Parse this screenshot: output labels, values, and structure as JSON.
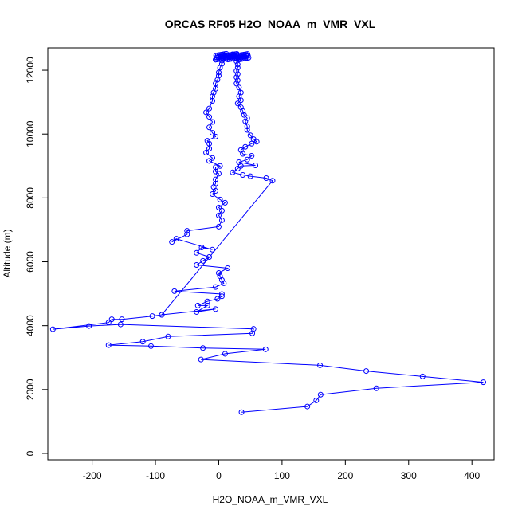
{
  "chart_data": {
    "type": "line",
    "title": "ORCAS RF05 H2O_NOAA_m_VMR_VXL",
    "xlabel": "H2O_NOAA_m_VMR_VXL",
    "ylabel": "Altitude (m)",
    "xlim": [
      -270,
      435
    ],
    "ylim": [
      -200,
      12700
    ],
    "xticks": [
      -200,
      -100,
      0,
      100,
      200,
      300,
      400
    ],
    "yticks": [
      0,
      2000,
      4000,
      6000,
      8000,
      10000,
      12000
    ],
    "grid": false,
    "legend": "none",
    "series": [
      {
        "color": "#0000ff",
        "marker": "open-circle",
        "points": [
          [
            36,
            1290
          ],
          [
            140,
            1470
          ],
          [
            154,
            1660
          ],
          [
            161,
            1840
          ],
          [
            249,
            2040
          ],
          [
            418,
            2230
          ],
          [
            322,
            2410
          ],
          [
            233,
            2580
          ],
          [
            160,
            2760
          ],
          [
            -28,
            2940
          ],
          [
            10,
            3120
          ],
          [
            74,
            3260
          ],
          [
            -25,
            3300
          ],
          [
            -107,
            3360
          ],
          [
            -174,
            3390
          ],
          [
            -120,
            3500
          ],
          [
            -80,
            3660
          ],
          [
            53,
            3760
          ],
          [
            55,
            3900
          ],
          [
            -155,
            4040
          ],
          [
            -205,
            3990
          ],
          [
            -262,
            3890
          ],
          [
            -174,
            4100
          ],
          [
            -169,
            4200
          ],
          [
            -153,
            4200
          ],
          [
            -105,
            4300
          ],
          [
            -90,
            4340
          ],
          [
            -5,
            4520
          ],
          [
            -35,
            4430
          ],
          [
            -18,
            4630
          ],
          [
            -33,
            4630
          ],
          [
            -18,
            4760
          ],
          [
            -2,
            4840
          ],
          [
            5,
            4920
          ],
          [
            5,
            4990
          ],
          [
            -70,
            5080
          ],
          [
            -5,
            5210
          ],
          [
            8,
            5330
          ],
          [
            5,
            5430
          ],
          [
            2,
            5550
          ],
          [
            0,
            5650
          ],
          [
            14,
            5800
          ],
          [
            -35,
            5900
          ],
          [
            -25,
            6030
          ],
          [
            -15,
            6150
          ],
          [
            -35,
            6280
          ],
          [
            -27,
            6450
          ],
          [
            -10,
            6380
          ],
          [
            -67,
            6720
          ],
          [
            -74,
            6620
          ],
          [
            -50,
            6860
          ],
          [
            -50,
            6970
          ],
          [
            0,
            7100
          ],
          [
            5,
            7300
          ],
          [
            0,
            7450
          ],
          [
            5,
            7600
          ],
          [
            0,
            7700
          ],
          [
            10,
            7850
          ],
          [
            2,
            7950
          ],
          [
            -10,
            8120
          ],
          [
            -5,
            8220
          ],
          [
            -8,
            8340
          ],
          [
            -5,
            8450
          ],
          [
            -5,
            8580
          ],
          [
            0,
            8760
          ],
          [
            -5,
            8830
          ],
          [
            -5,
            8960
          ],
          [
            2,
            9000
          ],
          [
            -15,
            9160
          ],
          [
            -10,
            9250
          ],
          [
            -20,
            9420
          ],
          [
            -15,
            9540
          ],
          [
            -15,
            9700
          ],
          [
            -18,
            9790
          ],
          [
            -5,
            9920
          ],
          [
            -10,
            10040
          ],
          [
            -15,
            10210
          ],
          [
            -10,
            10380
          ],
          [
            -15,
            10540
          ],
          [
            -20,
            10680
          ],
          [
            -15,
            10800
          ],
          [
            -10,
            11040
          ],
          [
            -10,
            11180
          ],
          [
            -8,
            11300
          ],
          [
            -5,
            11420
          ],
          [
            -5,
            11580
          ],
          [
            -2,
            11700
          ],
          [
            0,
            11830
          ],
          [
            0,
            11930
          ],
          [
            2,
            12080
          ],
          [
            5,
            12200
          ],
          [
            5,
            12300
          ],
          [
            8,
            12350
          ],
          [
            12,
            12400
          ],
          [
            15,
            12450
          ],
          [
            18,
            12480
          ],
          [
            22,
            12500
          ],
          [
            28,
            12500
          ],
          [
            25,
            12450
          ],
          [
            28,
            12380
          ],
          [
            28,
            12280
          ],
          [
            30,
            12180
          ],
          [
            30,
            12080
          ],
          [
            28,
            11980
          ],
          [
            30,
            11880
          ],
          [
            28,
            11780
          ],
          [
            30,
            11680
          ],
          [
            28,
            11580
          ],
          [
            32,
            11460
          ],
          [
            35,
            11300
          ],
          [
            32,
            11180
          ],
          [
            35,
            11060
          ],
          [
            30,
            10960
          ],
          [
            35,
            10840
          ],
          [
            38,
            10720
          ],
          [
            40,
            10600
          ],
          [
            45,
            10500
          ],
          [
            42,
            10400
          ],
          [
            45,
            10240
          ],
          [
            45,
            10130
          ],
          [
            50,
            9960
          ],
          [
            55,
            9840
          ],
          [
            60,
            9760
          ],
          [
            52,
            9700
          ],
          [
            42,
            9600
          ],
          [
            35,
            9500
          ],
          [
            38,
            9380
          ],
          [
            52,
            9320
          ],
          [
            45,
            9200
          ],
          [
            32,
            9120
          ],
          [
            58,
            9020
          ],
          [
            35,
            9000
          ],
          [
            30,
            8920
          ],
          [
            22,
            8800
          ],
          [
            38,
            8720
          ],
          [
            50,
            8680
          ],
          [
            75,
            8620
          ],
          [
            85,
            8540
          ],
          [
            -90,
            4340
          ]
        ]
      }
    ],
    "cluster_top": {
      "x_range": [
        -5,
        48
      ],
      "y_range": [
        12330,
        12520
      ]
    }
  }
}
